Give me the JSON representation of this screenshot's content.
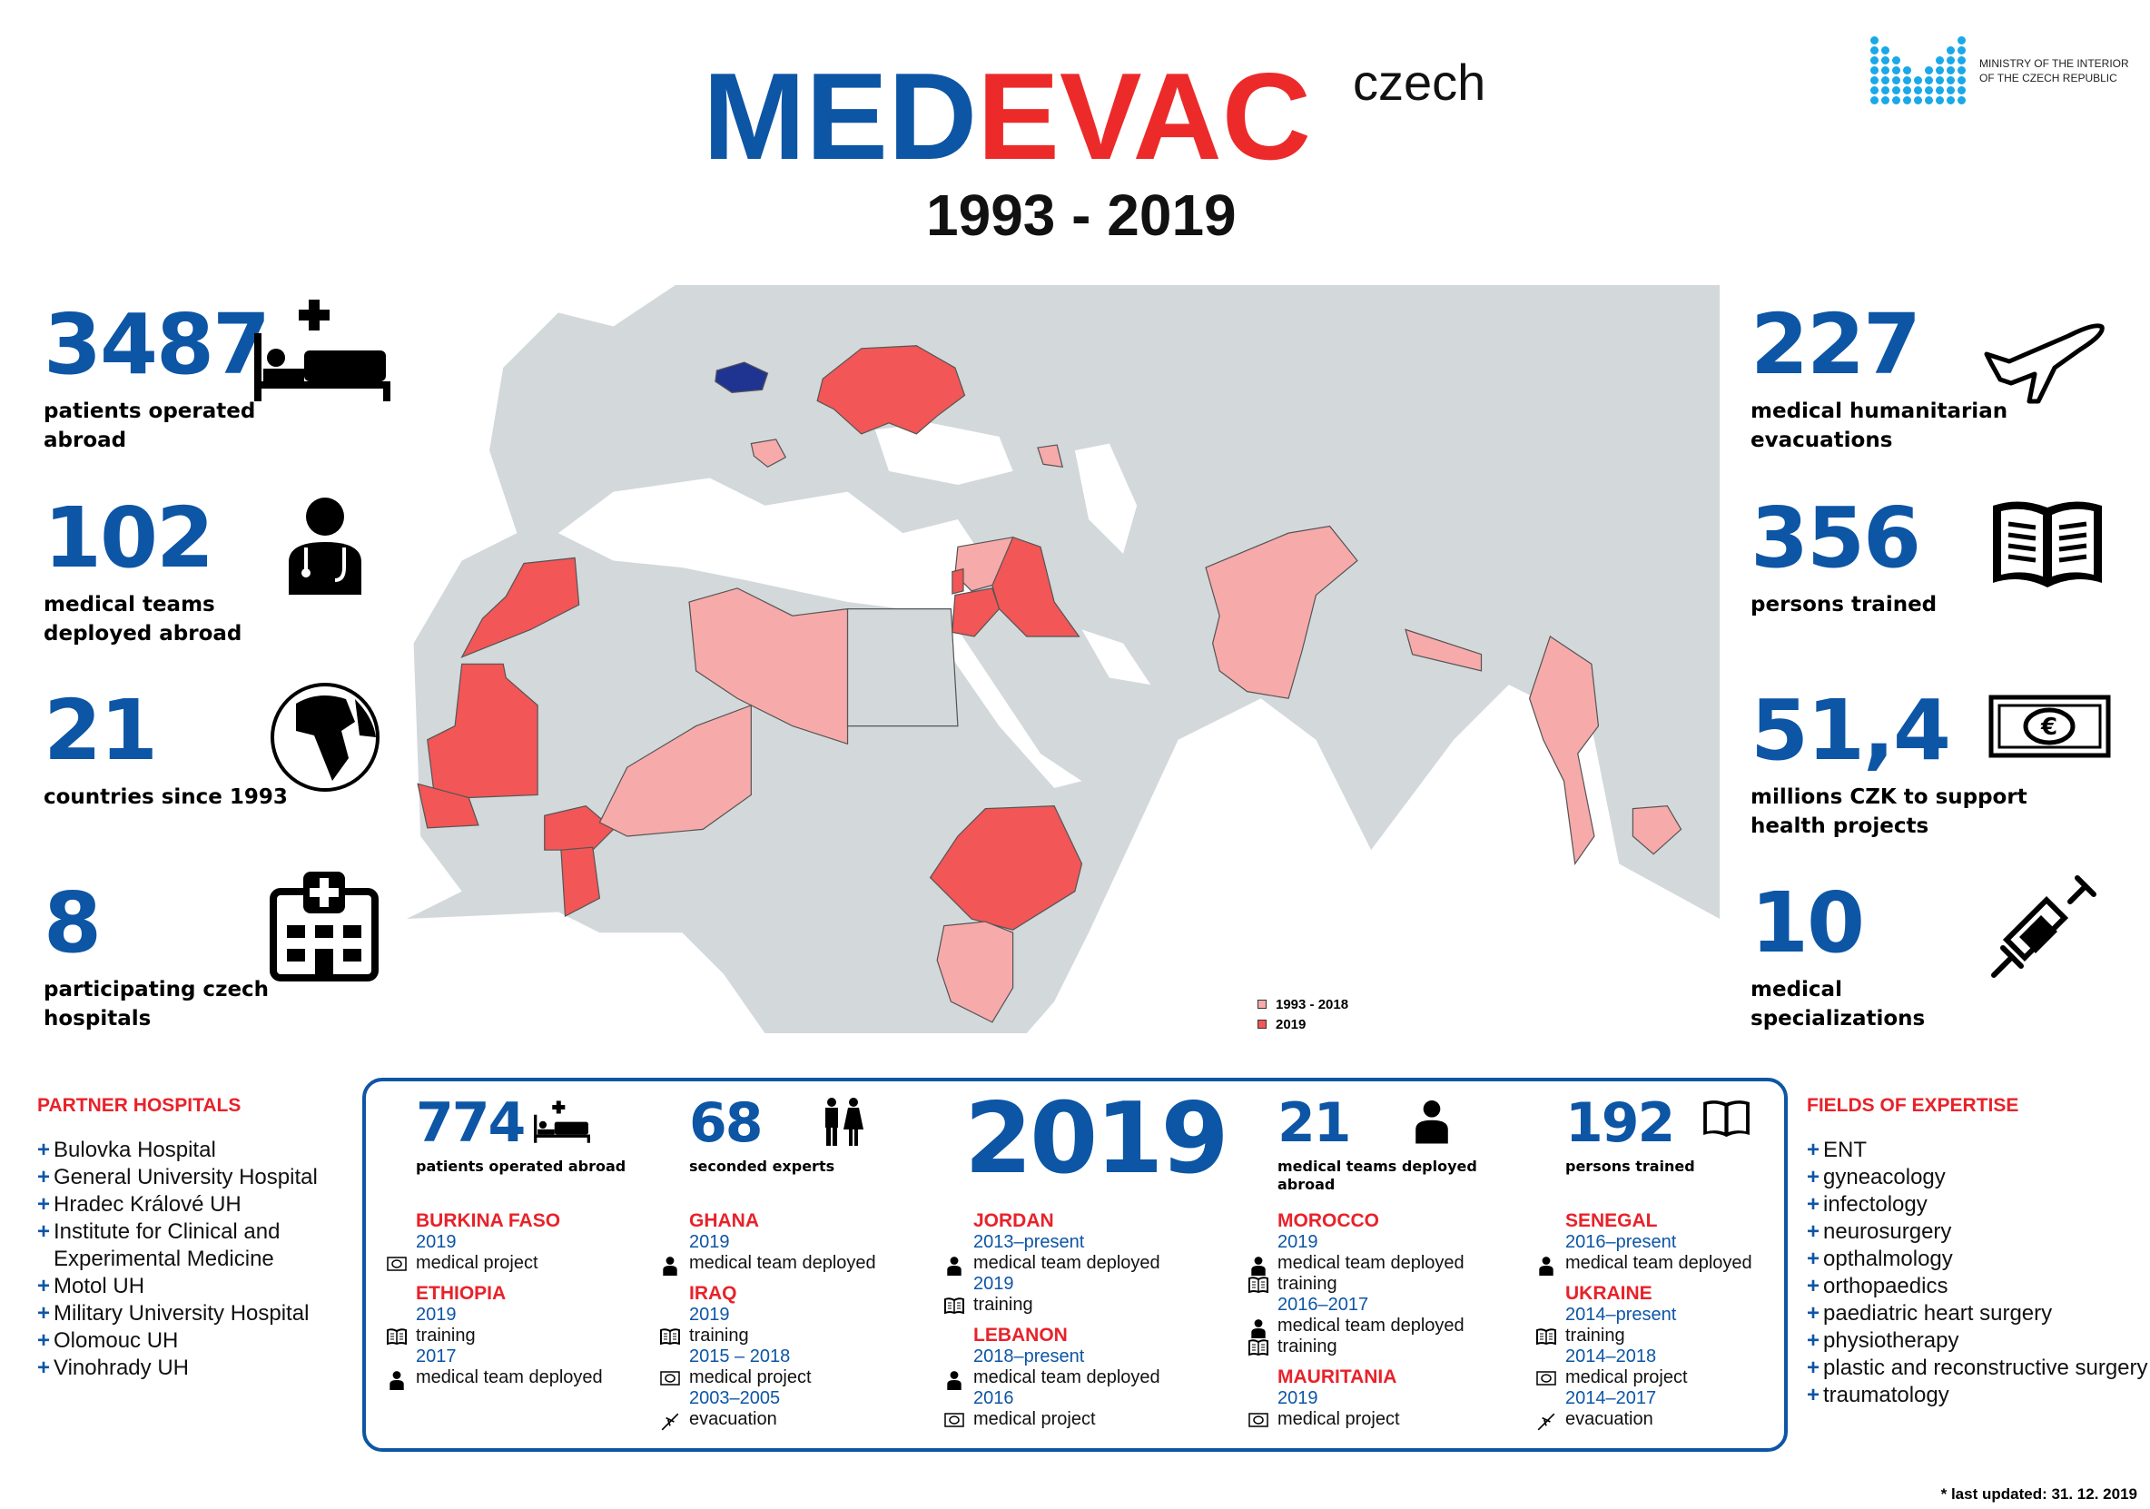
{
  "header": {
    "logo_part1": "MED",
    "logo_part2": "EVAC",
    "logo_suffix": "czech",
    "period": "1993 - 2019",
    "ministry": [
      "MINISTRY OF THE INTERIOR",
      "OF THE CZECH REPUBLIC"
    ]
  },
  "colors": {
    "blue": "#0d55a5",
    "red": "#e8222a",
    "map_2019": "#f25656",
    "map_past": "#f7aaaa",
    "map_czech": "#1f3490",
    "map_land": "#d3d8db"
  },
  "left_stats": [
    {
      "value": "3487",
      "label": "patients operated abroad",
      "icon": "hospital-bed-icon"
    },
    {
      "value": "102",
      "label": "medical teams deployed abroad",
      "icon": "doctor-icon"
    },
    {
      "value": "21",
      "label": "countries since 1993",
      "icon": "globe-icon"
    },
    {
      "value": "8",
      "label": "participating czech hospitals",
      "icon": "hospital-icon"
    }
  ],
  "right_stats": [
    {
      "value": "227",
      "label": "medical humanitarian evacuations",
      "icon": "airplane-icon"
    },
    {
      "value": "356",
      "label": "persons trained",
      "icon": "book-icon"
    },
    {
      "value": "51,4",
      "label": "millions CZK to support health projects",
      "icon": "banknote-icon"
    },
    {
      "value": "10",
      "label": "medical specializations",
      "icon": "syringe-icon"
    }
  ],
  "map_legend": [
    {
      "label": "1993 - 2018",
      "color": "#f7aaaa"
    },
    {
      "label": "2019",
      "color": "#f25656"
    }
  ],
  "partner_hospitals": {
    "title": "PARTNER HOSPITALS",
    "items": [
      "Bulovka Hospital",
      "General University Hospital",
      "Hradec Králové UH",
      "Institute for Clinical and Experimental Medicine",
      "Motol UH",
      "Military University Hospital",
      "Olomouc UH",
      "Vinohrady UH"
    ]
  },
  "fields_of_expertise": {
    "title": "FIELDS OF EXPERTISE",
    "items": [
      "ENT",
      "gyneacology",
      "infectology",
      "neurosurgery",
      "opthalmology",
      "orthopaedics",
      "paediatric heart surgery",
      "physiotherapy",
      "plastic and reconstructive surgery",
      "traumatology"
    ]
  },
  "year_2019": {
    "year": "2019",
    "stats": [
      {
        "value": "774",
        "label": "patients operated abroad"
      },
      {
        "value": "68",
        "label": "seconded experts"
      },
      {
        "value": "21",
        "label": "medical teams deployed abroad"
      },
      {
        "value": "192",
        "label": "persons trained"
      }
    ],
    "columns": [
      [
        {
          "country": "BURKINA FASO",
          "entries": [
            {
              "years": "2019",
              "activity": "medical project",
              "icon": "banknote"
            }
          ]
        },
        {
          "country": "ETHIOPIA",
          "entries": [
            {
              "years": "2019",
              "activity": "training",
              "icon": "book"
            },
            {
              "years": "2017",
              "activity": "medical team deployed",
              "icon": "doctor"
            }
          ]
        }
      ],
      [
        {
          "country": "GHANA",
          "entries": [
            {
              "years": "2019",
              "activity": "medical team deployed",
              "icon": "doctor"
            }
          ]
        },
        {
          "country": "IRAQ",
          "entries": [
            {
              "years": "2019",
              "activity": "training",
              "icon": "book"
            },
            {
              "years": "2015 – 2018",
              "activity": "medical project",
              "icon": "banknote"
            },
            {
              "years": "2003–2005",
              "activity": "evacuation",
              "icon": "airplane"
            }
          ]
        }
      ],
      [
        {
          "country": "JORDAN",
          "entries": [
            {
              "years": "2013–present",
              "activity": "medical team deployed",
              "icon": "doctor"
            },
            {
              "years": "2019",
              "activity": "training",
              "icon": "book"
            }
          ]
        },
        {
          "country": "LEBANON",
          "entries": [
            {
              "years": "2018–present",
              "activity": "medical team deployed",
              "icon": "doctor"
            },
            {
              "years": "2016",
              "activity": "medical project",
              "icon": "banknote"
            }
          ]
        }
      ],
      [
        {
          "country": "MOROCCO",
          "entries": [
            {
              "years": "2019",
              "activity": "medical team deployed",
              "icon": "doctor"
            },
            {
              "years": "",
              "activity": "training",
              "icon": "book"
            },
            {
              "years": "2016–2017",
              "activity": "medical team deployed",
              "icon": "doctor"
            },
            {
              "years": "",
              "activity": "training",
              "icon": "book"
            }
          ]
        },
        {
          "country": "MAURITANIA",
          "entries": [
            {
              "years": "2019",
              "activity": "medical project",
              "icon": "banknote"
            }
          ]
        }
      ],
      [
        {
          "country": "SENEGAL",
          "entries": [
            {
              "years": "2016–present",
              "activity": "medical team deployed",
              "icon": "doctor"
            }
          ]
        },
        {
          "country": "UKRAINE",
          "entries": [
            {
              "years": "2014–present",
              "activity": "training",
              "icon": "book"
            },
            {
              "years": "2014–2018",
              "activity": "medical project",
              "icon": "banknote"
            },
            {
              "years": "2014–2017",
              "activity": "evacuation",
              "icon": "airplane"
            }
          ]
        }
      ]
    ]
  },
  "footer": {
    "last_updated": "* last updated: 31. 12. 2019"
  }
}
